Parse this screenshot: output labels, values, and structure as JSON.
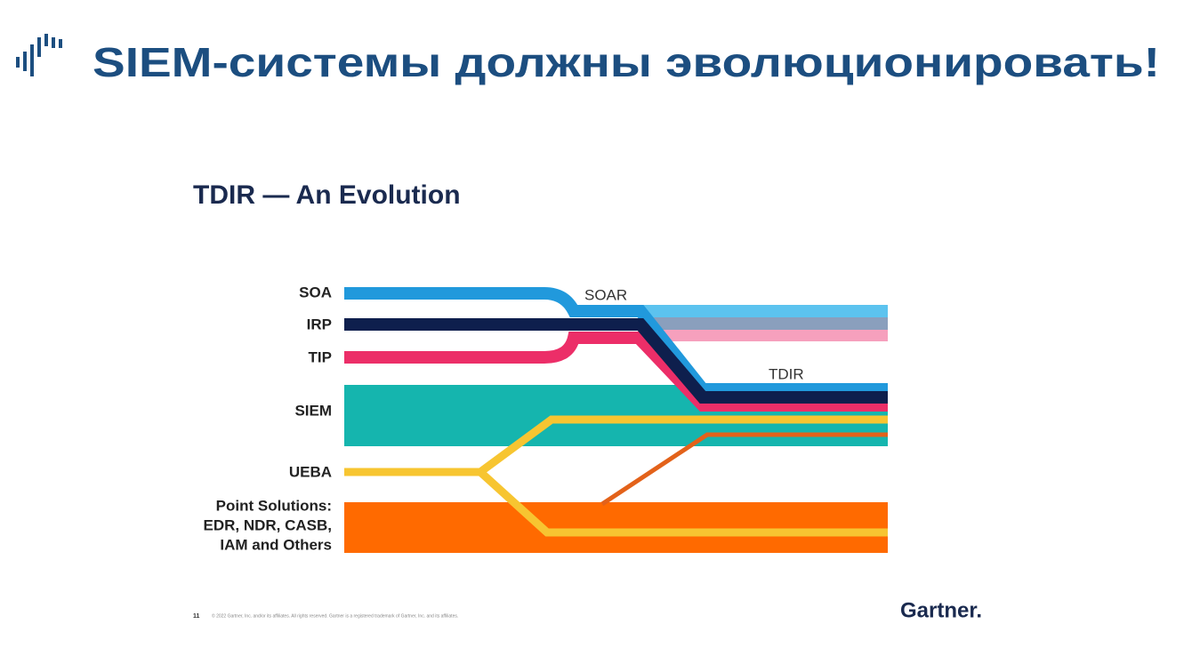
{
  "header": {
    "title": "SIEM-системы должны эволюционировать!"
  },
  "slide": {
    "title": "TDIR — An Evolution",
    "labels": [
      "SOA",
      "IRP",
      "TIP",
      "SIEM",
      "UEBA",
      "Point Solutions:",
      "EDR, NDR, CASB,",
      "IAM and Others"
    ],
    "stage_labels": [
      "SOAR",
      "TDIR"
    ],
    "footer": {
      "page": "11",
      "copyright": "© 2022 Gartner, Inc. and/or its affiliates. All rights reserved. Gartner is a registered trademark of Gartner, Inc. and its affiliates.",
      "logo": "Gartner."
    }
  }
}
